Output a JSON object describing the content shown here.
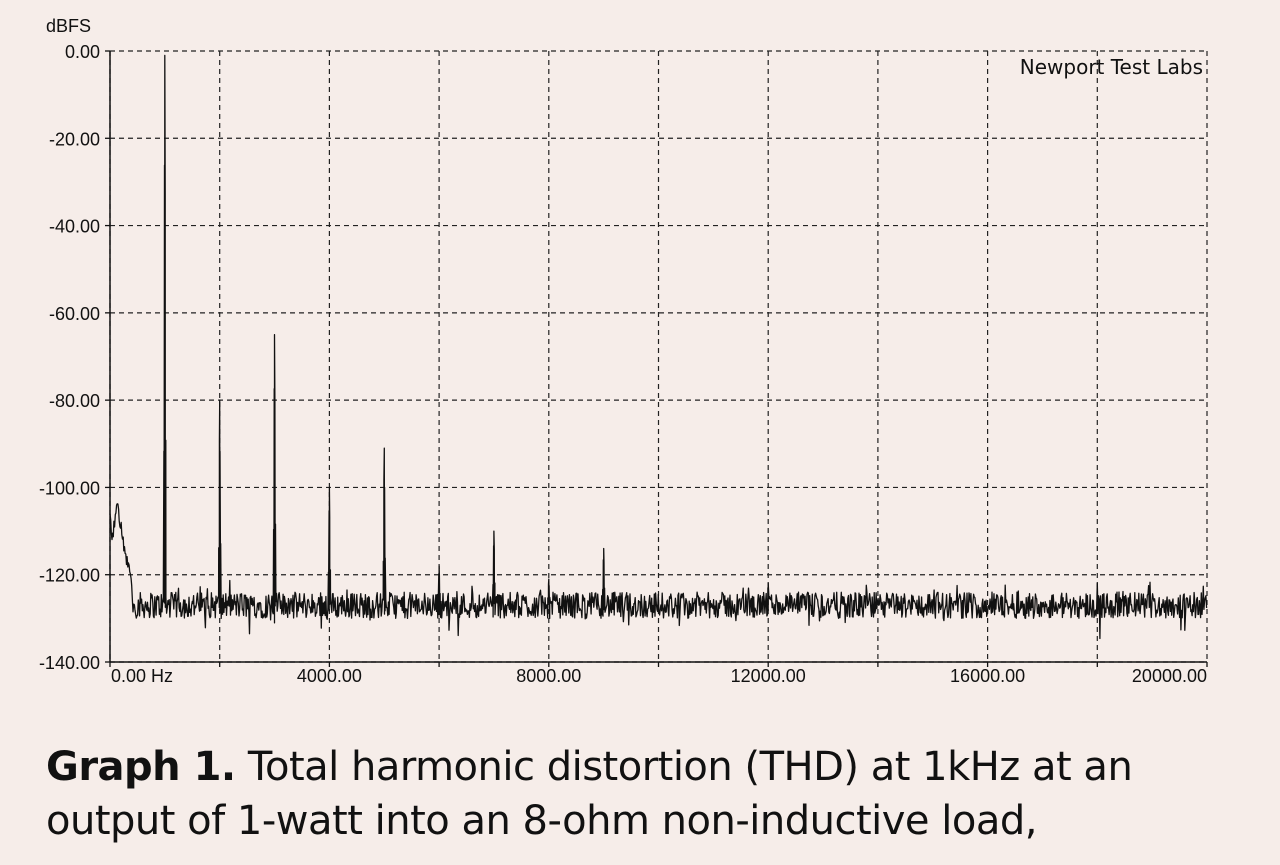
{
  "chart_data": {
    "type": "line",
    "ylabel": "dBFS",
    "watermark": "Newport Test Labs",
    "xlim": [
      0,
      20000
    ],
    "ylim": [
      -140,
      0
    ],
    "grid": true,
    "grid_style": "dashed",
    "x_ticks": [
      {
        "value": 0,
        "label": "0.00 Hz"
      },
      {
        "value": 4000,
        "label": "4000.00"
      },
      {
        "value": 8000,
        "label": "8000.00"
      },
      {
        "value": 12000,
        "label": "12000.00"
      },
      {
        "value": 16000,
        "label": "16000.00"
      },
      {
        "value": 20000,
        "label": "20000.00"
      }
    ],
    "x_grid": [
      0,
      2000,
      4000,
      6000,
      8000,
      10000,
      12000,
      14000,
      16000,
      18000,
      20000
    ],
    "y_ticks": [
      {
        "value": 0,
        "label": "0.00"
      },
      {
        "value": -20,
        "label": "-20.00"
      },
      {
        "value": -40,
        "label": "-40.00"
      },
      {
        "value": -60,
        "label": "-60.00"
      },
      {
        "value": -80,
        "label": "-80.00"
      },
      {
        "value": -100,
        "label": "-100.00"
      },
      {
        "value": -120,
        "label": "-120.00"
      },
      {
        "value": -140,
        "label": "-140.00"
      }
    ],
    "noise_floor_db": -127,
    "peaks": [
      {
        "x": 1000,
        "y": -1
      },
      {
        "x": 2000,
        "y": -80
      },
      {
        "x": 3000,
        "y": -65
      },
      {
        "x": 4000,
        "y": -100
      },
      {
        "x": 5000,
        "y": -91
      },
      {
        "x": 6000,
        "y": -118
      },
      {
        "x": 7000,
        "y": -110
      },
      {
        "x": 8000,
        "y": -121
      },
      {
        "x": 9000,
        "y": -114
      },
      {
        "x": 12000,
        "y": -122
      }
    ],
    "low_frequency_rise": [
      {
        "x": 0,
        "y": -108
      },
      {
        "x": 50,
        "y": -112
      },
      {
        "x": 130,
        "y": -102
      },
      {
        "x": 250,
        "y": -114
      },
      {
        "x": 400,
        "y": -122
      }
    ]
  },
  "caption": {
    "bold": "Graph 1.",
    "text": " Total harmonic distortion (THD) at 1kHz at an output of 1-watt into an 8-ohm non-inductive load,"
  },
  "colors": {
    "background": "#f6ede9",
    "trace": "#111111",
    "grid": "#222222"
  }
}
